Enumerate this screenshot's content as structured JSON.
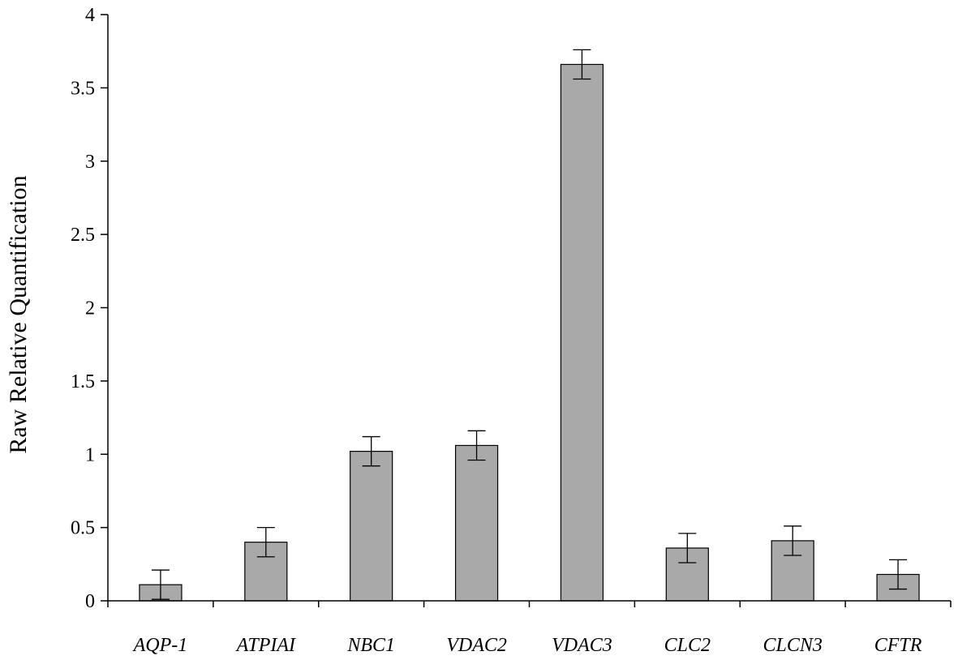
{
  "chart_data": {
    "type": "bar",
    "title": "",
    "xlabel": "",
    "ylabel": "Raw Relative Quantification",
    "categories": [
      "AQP-1",
      "ATPIAI",
      "NBC1",
      "VDAC2",
      "VDAC3",
      "CLC2",
      "CLCN3",
      "CFTR"
    ],
    "values": [
      0.11,
      0.4,
      1.02,
      1.06,
      3.66,
      0.36,
      0.41,
      0.18
    ],
    "errors": [
      0.1,
      0.1,
      0.1,
      0.1,
      0.1,
      0.1,
      0.1,
      0.1
    ],
    "ylim": [
      0,
      4
    ],
    "yticks": [
      "0",
      "0.5",
      "1",
      "1.5",
      "2",
      "2.5",
      "3",
      "3.5",
      "4"
    ],
    "grid": false,
    "legend": "none",
    "bar_color": "#a9a9a9",
    "bar_edge_color": "#000000"
  }
}
